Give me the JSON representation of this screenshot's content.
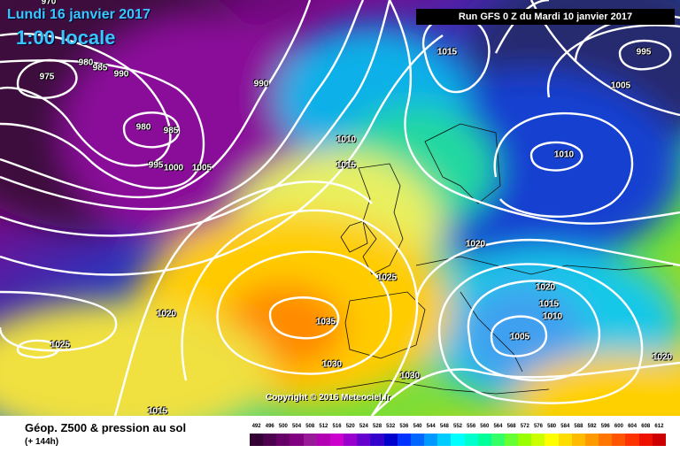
{
  "header": {
    "date": "Lundi 16 janvier 2017",
    "time": "1:00 locale",
    "run": "Run GFS 0 Z du Mardi 10 janvier 2017"
  },
  "copyright": "Copyright © 2016 Meteociel.fr",
  "legend": {
    "title": "Géop. Z500 & pression au sol",
    "subtitle": "(+ 144h)",
    "scale": [
      492,
      496,
      500,
      504,
      508,
      512,
      516,
      520,
      524,
      528,
      532,
      536,
      540,
      544,
      548,
      552,
      556,
      560,
      564,
      568,
      572,
      576,
      580,
      584,
      588,
      592,
      596,
      600,
      604,
      608,
      612
    ],
    "colors": [
      "#330033",
      "#4d004d",
      "#660066",
      "#800080",
      "#991a99",
      "#b300b3",
      "#cc00cc",
      "#9900cc",
      "#6600cc",
      "#3300cc",
      "#0000cc",
      "#0033ff",
      "#0066ff",
      "#0099ff",
      "#00ccff",
      "#00ffff",
      "#00ffcc",
      "#00ff99",
      "#33ff66",
      "#66ff33",
      "#99ff00",
      "#ccff00",
      "#ffff00",
      "#ffdd00",
      "#ffbb00",
      "#ff9900",
      "#ff7700",
      "#ff5500",
      "#ff3300",
      "#ee1100",
      "#cc0000"
    ]
  },
  "isobar_labels": [
    {
      "text": "970"
    },
    {
      "text": "975"
    },
    {
      "text": "980"
    },
    {
      "text": "985"
    },
    {
      "text": "990"
    },
    {
      "text": "990"
    },
    {
      "text": "980"
    },
    {
      "text": "985"
    },
    {
      "text": "995"
    },
    {
      "text": "1000"
    },
    {
      "text": "1005"
    },
    {
      "text": "1010"
    },
    {
      "text": "1015"
    },
    {
      "text": "1015"
    },
    {
      "text": "1005"
    },
    {
      "text": "995"
    },
    {
      "text": "1010"
    },
    {
      "text": "1020"
    },
    {
      "text": "1025"
    },
    {
      "text": "1020"
    },
    {
      "text": "1015"
    },
    {
      "text": "1010"
    },
    {
      "text": "1005"
    },
    {
      "text": "1035"
    },
    {
      "text": "1030"
    },
    {
      "text": "1030"
    },
    {
      "text": "1020"
    },
    {
      "text": "1025"
    },
    {
      "text": "1015"
    },
    {
      "text": "1020"
    }
  ]
}
